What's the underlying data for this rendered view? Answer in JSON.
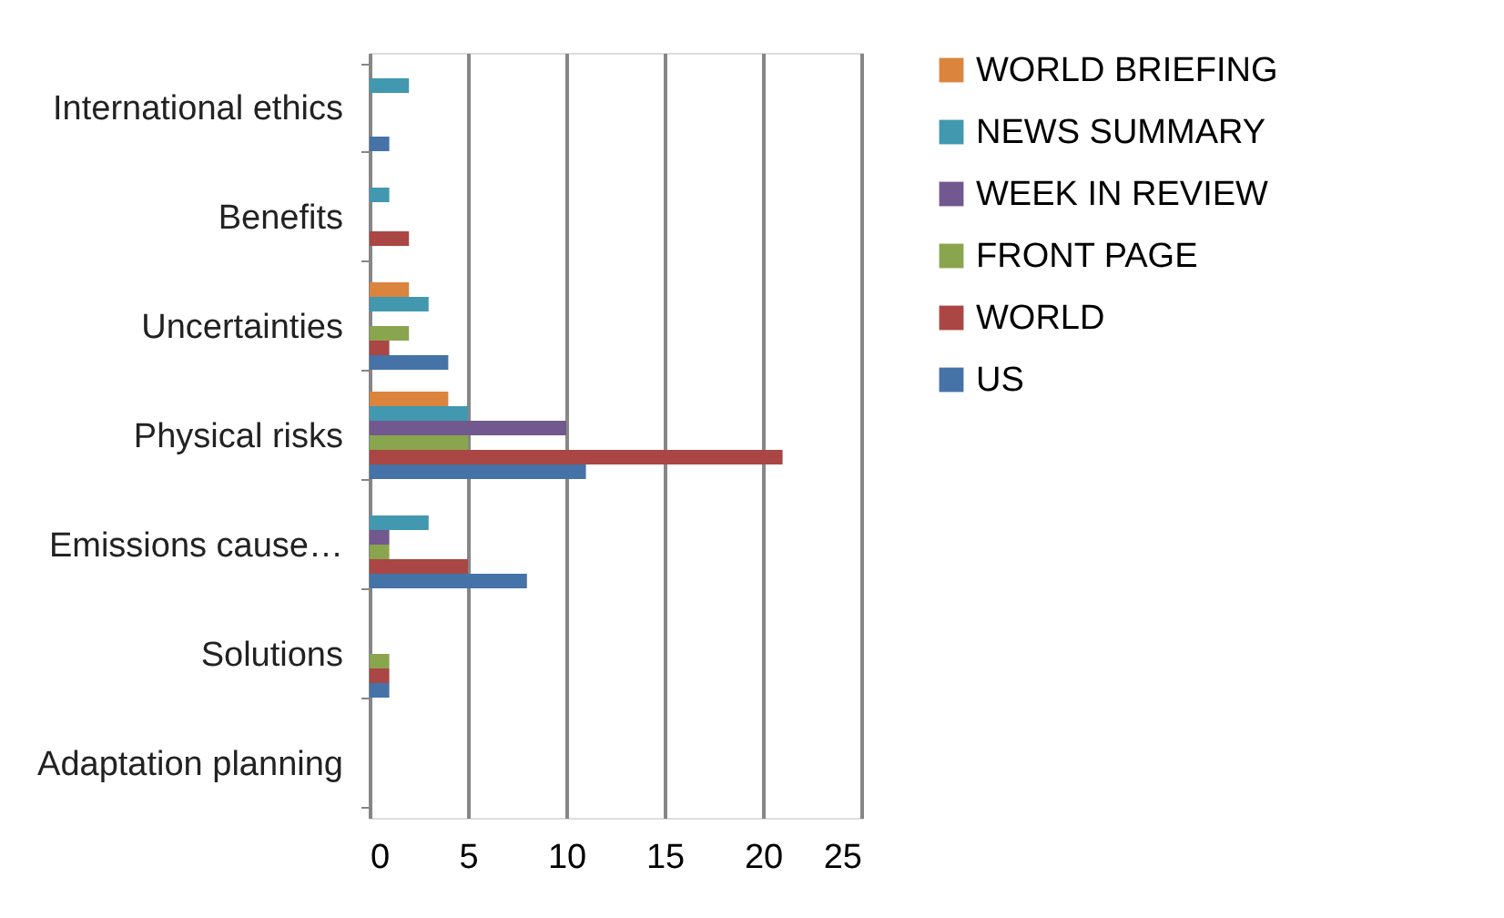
{
  "chart_data": {
    "type": "bar",
    "orientation": "horizontal",
    "categories": [
      "International ethics",
      "Benefits",
      "Uncertainties",
      "Physical risks",
      "Emissions cause…",
      "Solutions",
      "Adaptation planning"
    ],
    "series": [
      {
        "name": "WORLD BRIEFING",
        "color": "#db843d",
        "values": [
          null,
          null,
          2,
          4,
          null,
          null,
          null
        ]
      },
      {
        "name": "NEWS SUMMARY",
        "color": "#4198af",
        "values": [
          2,
          1,
          3,
          5,
          3,
          null,
          null
        ]
      },
      {
        "name": "WEEK IN REVIEW",
        "color": "#71588f",
        "values": [
          null,
          null,
          null,
          10,
          1,
          null,
          null
        ]
      },
      {
        "name": "FRONT PAGE",
        "color": "#89a54e",
        "values": [
          null,
          null,
          2,
          5,
          1,
          1,
          null
        ]
      },
      {
        "name": "WORLD",
        "color": "#aa4643",
        "values": [
          null,
          2,
          1,
          21,
          5,
          1,
          null
        ]
      },
      {
        "name": "US",
        "color": "#4572a7",
        "values": [
          1,
          null,
          4,
          11,
          8,
          1,
          null
        ]
      }
    ],
    "xlim": [
      0,
      25
    ],
    "xticks": [
      0,
      5,
      10,
      15,
      20,
      25
    ],
    "grid": "x",
    "legend": "right"
  }
}
